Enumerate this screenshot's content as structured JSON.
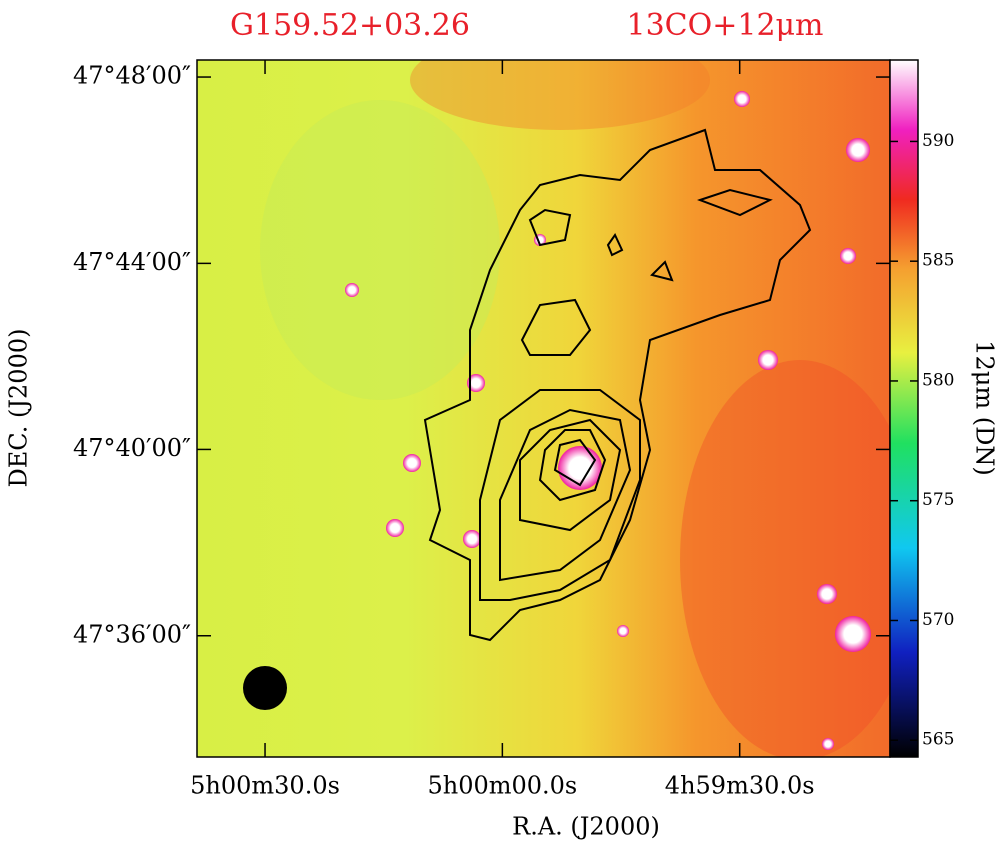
{
  "chart_data": {
    "type": "image",
    "title": "G159.52+03.26",
    "subtitle": "13CO+12μm",
    "xlabel": "R.A. (J2000)",
    "ylabel": "DEC. (J2000)",
    "colorbar_label": "12μm (DN)",
    "xlim": [
      3638.6,
      3551.0
    ],
    "xticks": [
      {
        "value": 3630,
        "label": "5h00m30.0s"
      },
      {
        "value": 3600,
        "label": "5h00m00.0s"
      },
      {
        "value": 3570,
        "label": "4h59m30.0s"
      }
    ],
    "ylim": [
      47.5566,
      47.8061
    ],
    "yticks": [
      {
        "value": 47.8,
        "label": "47°48′00″"
      },
      {
        "value": 47.7333,
        "label": "47°44′00″"
      },
      {
        "value": 47.6667,
        "label": "47°40′00″"
      },
      {
        "value": 47.6,
        "label": "47°36′00″"
      }
    ],
    "clim": [
      564.3,
      593.4
    ],
    "cticks": [
      565,
      570,
      575,
      580,
      585,
      590
    ]
  }
}
